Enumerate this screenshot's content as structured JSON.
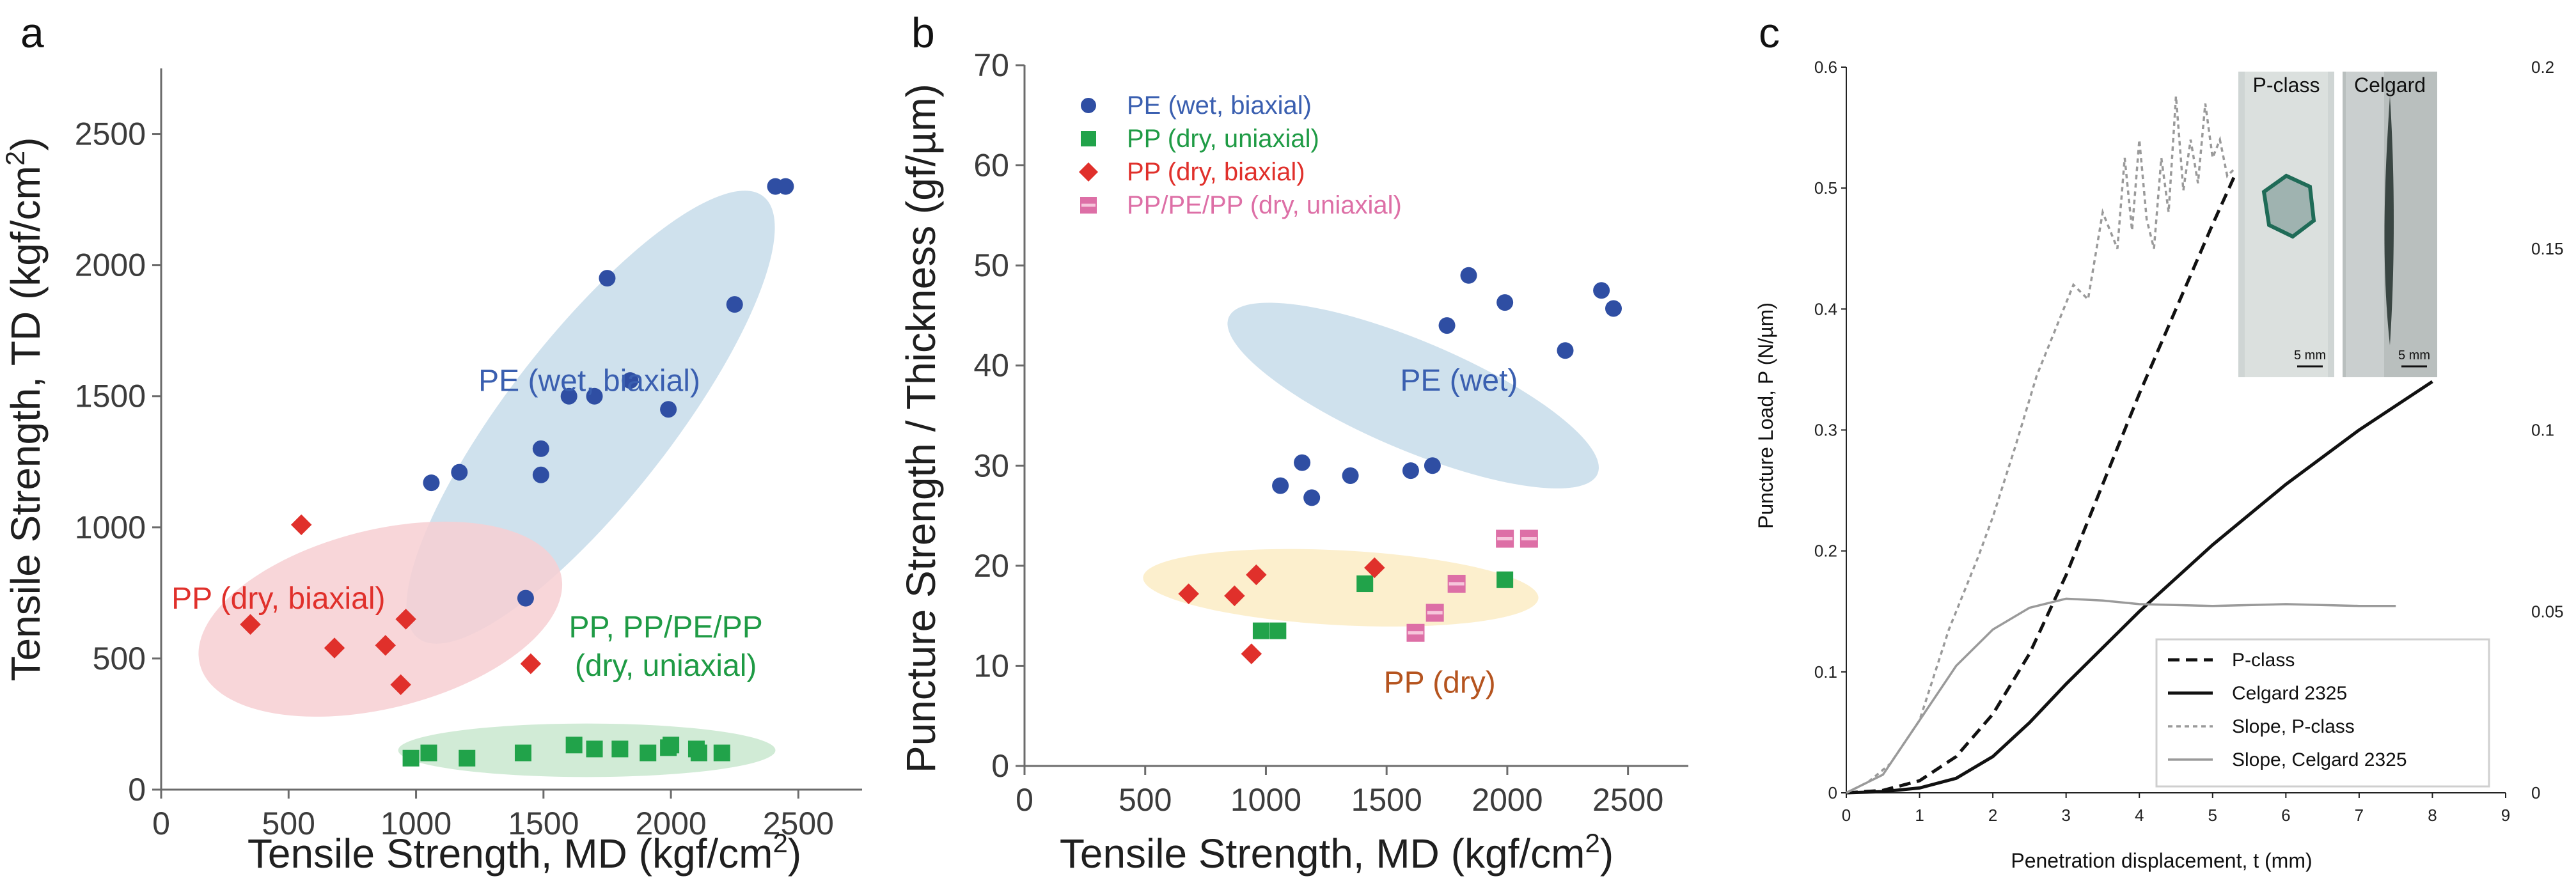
{
  "chart_data": [
    {
      "panel": "a",
      "type": "scatter",
      "xlabel": "Tensile Strength, MD (kgf/cm",
      "xlabel_sup": "2",
      "xlabel_end": ")",
      "ylabel": "Tensile Strength, TD (kgf/cm",
      "ylabel_sup": "2",
      "ylabel_end": ")",
      "xlim": [
        0,
        2750
      ],
      "ylim": [
        0,
        2750
      ],
      "xticks": [
        0,
        500,
        1000,
        1500,
        2000,
        2500
      ],
      "yticks": [
        0,
        500,
        1000,
        1500,
        2000,
        2500
      ],
      "groups": [
        {
          "name": "PE (wet, biaxial)",
          "label_at": [
            1680,
            1520
          ],
          "ellipse": {
            "cx": 1685,
            "cy": 1420,
            "rx": 1100,
            "ry": 320,
            "angle": 52
          },
          "color": "#c7dcea"
        },
        {
          "name": "PP (dry, biaxial)",
          "label_at": [
            460,
            690
          ],
          "ellipse": {
            "cx": 860,
            "cy": 650,
            "rx": 730,
            "ry": 350,
            "angle": 14
          },
          "color": "#f7cfd2"
        },
        {
          "name": "PP, PP/PE/PP",
          "name2": "(dry, uniaxial)",
          "label_at": [
            1980,
            580
          ],
          "ellipse": {
            "cx": 1670,
            "cy": 150,
            "rx": 740,
            "ry": 105,
            "angle": 0
          },
          "color": "#c9e8cf"
        }
      ],
      "series": [
        {
          "name": "PE (wet, biaxial)",
          "marker": "circle",
          "color": "#2f4ea3",
          "x": [
            1060,
            1170,
            1430,
            1490,
            1490,
            1600,
            1700,
            1750,
            1840,
            1990,
            2250,
            2410,
            2450
          ],
          "y": [
            1170,
            1210,
            730,
            1300,
            1200,
            1500,
            1500,
            1950,
            1560,
            1450,
            1850,
            2300,
            2300
          ]
        },
        {
          "name": "PP (dry, biaxial)",
          "marker": "diamond",
          "color": "#e0302b",
          "x": [
            350,
            550,
            680,
            880,
            940,
            960,
            1450
          ],
          "y": [
            630,
            1010,
            540,
            550,
            400,
            650,
            480
          ]
        },
        {
          "name": "PP, PP/PE/PP (dry, uniaxial)",
          "marker": "square",
          "color": "#21a34a",
          "x": [
            980,
            1050,
            1200,
            1420,
            1620,
            1700,
            1800,
            1910,
            1990,
            2000,
            2100,
            2110,
            2200
          ],
          "y": [
            120,
            140,
            120,
            140,
            170,
            155,
            155,
            140,
            160,
            170,
            155,
            140,
            140
          ]
        }
      ]
    },
    {
      "panel": "b",
      "type": "scatter",
      "xlabel": "Tensile Strength, MD (kgf/cm",
      "xlabel_sup": "2",
      "xlabel_end": ")",
      "ylabel": "Puncture Strength / Thickness (gf/µm)",
      "xlim": [
        0,
        2750
      ],
      "ylim": [
        0,
        70
      ],
      "xticks": [
        0,
        500,
        1000,
        1500,
        2000,
        2500
      ],
      "yticks": [
        0,
        10,
        20,
        30,
        40,
        50,
        60,
        70
      ],
      "groups": [
        {
          "name": "PE (wet)",
          "label_at": [
            1800,
            37.5
          ],
          "ellipse": {
            "cx": 1610,
            "cy": 37,
            "rx": 830,
            "ry": 225,
            "angle": -23
          },
          "color": "#c7dcea"
        },
        {
          "name": "PP (dry)",
          "label_at": [
            1720,
            7.3
          ],
          "ellipse": {
            "cx": 1310,
            "cy": 17.8,
            "rx": 820,
            "ry": 155,
            "angle": -3
          },
          "color": "#fbecc4"
        }
      ],
      "series": [
        {
          "name": "PE (wet, biaxial)",
          "marker": "circle",
          "color": "#2f4ea3",
          "x": [
            1060,
            1150,
            1190,
            1350,
            1600,
            1690,
            1750,
            1840,
            1990,
            2240,
            2390,
            2440
          ],
          "y": [
            28.0,
            30.3,
            26.8,
            29.0,
            29.5,
            30.0,
            44.0,
            49.0,
            46.3,
            41.5,
            47.5,
            45.7
          ]
        },
        {
          "name": "PP (dry, uniaxial)",
          "marker": "square",
          "color": "#21a34a",
          "x": [
            980,
            1050,
            1410,
            1990
          ],
          "y": [
            13.5,
            13.5,
            18.2,
            18.6
          ]
        },
        {
          "name": "PP (dry, biaxial)",
          "marker": "diamond",
          "color": "#e0302b",
          "x": [
            680,
            870,
            940,
            960,
            1450
          ],
          "y": [
            17.2,
            17.0,
            11.2,
            19.1,
            19.8
          ]
        },
        {
          "name": "PP/PE/PP (dry, uniaxial)",
          "marker": "halfsquare",
          "color": "#dd6fa6",
          "x": [
            1620,
            1700,
            1790,
            1990,
            2090
          ],
          "y": [
            13.3,
            15.3,
            18.2,
            22.7,
            22.7
          ]
        }
      ],
      "legend": {
        "position": "top-left",
        "entries": [
          "PE (wet, biaxial)",
          "PP (dry, uniaxial)",
          "PP (dry, biaxial)",
          "PP/PE/PP (dry, uniaxial)"
        ]
      }
    },
    {
      "panel": "c",
      "type": "line",
      "xlabel": "Penetration displacement, t (mm)",
      "ylabel": "Puncture Load, P (N/µm)",
      "xlim": [
        0,
        9
      ],
      "ylim": [
        0,
        0.6
      ],
      "y2lim": [
        0,
        0.2
      ],
      "xticks": [
        0,
        1,
        2,
        3,
        4,
        5,
        6,
        7,
        8,
        9
      ],
      "yticks": [
        0,
        0.1,
        0.2,
        0.3,
        0.4,
        0.5,
        0.6
      ],
      "y2ticks": [
        0,
        0.05,
        0.1,
        0.15,
        0.2
      ],
      "series": [
        {
          "name": "P-class",
          "style": "dashed",
          "color": "#111111",
          "x": [
            0,
            0.5,
            1.0,
            1.5,
            2.0,
            2.5,
            3.0,
            3.5,
            4.0,
            4.5,
            5.0,
            5.3
          ],
          "y": [
            0,
            0.002,
            0.01,
            0.03,
            0.065,
            0.115,
            0.18,
            0.255,
            0.33,
            0.4,
            0.47,
            0.51
          ]
        },
        {
          "name": "Celgard 2325",
          "style": "solid",
          "color": "#111111",
          "x": [
            0,
            0.5,
            1.0,
            1.5,
            2.0,
            2.5,
            3.0,
            4.0,
            5.0,
            6.0,
            7.0,
            8.0
          ],
          "y": [
            0,
            0.001,
            0.004,
            0.012,
            0.03,
            0.058,
            0.09,
            0.15,
            0.205,
            0.255,
            0.3,
            0.34
          ]
        },
        {
          "name": "Slope, P-class",
          "style": "dotted",
          "axis": "right",
          "color": "#9a9a9a",
          "x": [
            0,
            0.3,
            0.6,
            1.0,
            1.4,
            1.8,
            2.0,
            2.3,
            2.6,
            2.9,
            3.1,
            3.3,
            3.5,
            3.7,
            3.8,
            3.9,
            4.0,
            4.1,
            4.2,
            4.3,
            4.4,
            4.5,
            4.6,
            4.7,
            4.8,
            4.9,
            5.0,
            5.1,
            5.2,
            5.3
          ],
          "y": [
            0,
            0.003,
            0.008,
            0.02,
            0.045,
            0.065,
            0.076,
            0.095,
            0.115,
            0.13,
            0.14,
            0.136,
            0.16,
            0.15,
            0.175,
            0.155,
            0.18,
            0.158,
            0.15,
            0.175,
            0.16,
            0.192,
            0.166,
            0.18,
            0.168,
            0.19,
            0.175,
            0.18,
            0.17,
            0.172
          ]
        },
        {
          "name": "Slope, Celgard 2325",
          "style": "solid",
          "axis": "right",
          "color": "#9a9a9a",
          "x": [
            0,
            0.5,
            1.0,
            1.5,
            2.0,
            2.5,
            3.0,
            3.5,
            4.0,
            5.0,
            6.0,
            7.0,
            7.5
          ],
          "y": [
            0,
            0.005,
            0.02,
            0.035,
            0.045,
            0.051,
            0.0535,
            0.053,
            0.052,
            0.0515,
            0.052,
            0.0515,
            0.0515
          ]
        }
      ],
      "legend": {
        "position": "bottom-right",
        "entries": [
          "P-class",
          "Celgard 2325",
          "Slope, P-class",
          "Slope, Celgard 2325"
        ]
      },
      "inset": {
        "labels": [
          "P-class",
          "Celgard"
        ],
        "scale": "5 mm"
      }
    }
  ]
}
